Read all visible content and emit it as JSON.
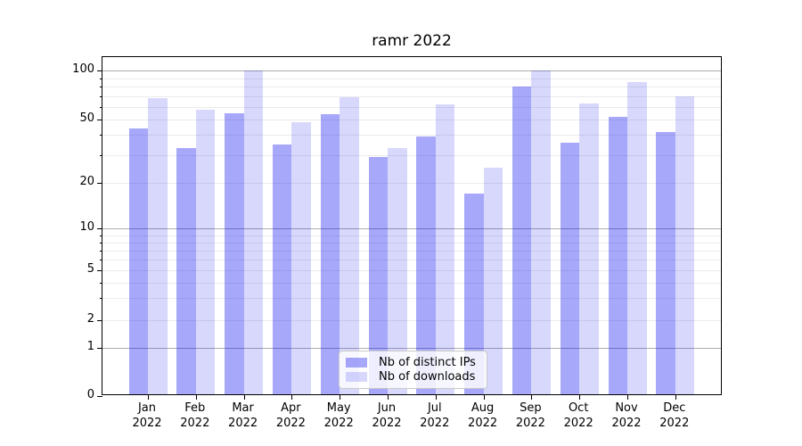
{
  "title": "ramr 2022",
  "chart_data": {
    "type": "bar",
    "title": "ramr 2022",
    "x_axis": {
      "categories": [
        "Jan",
        "Feb",
        "Mar",
        "Apr",
        "May",
        "Jun",
        "Jul",
        "Aug",
        "Sep",
        "Oct",
        "Nov",
        "Dec"
      ],
      "year": "2022"
    },
    "y_axis": {
      "scale": "symlog",
      "tick_labels": [
        "100",
        "50",
        "20",
        "10",
        "5",
        "2",
        "1",
        "0"
      ],
      "tick_values": [
        100,
        50,
        20,
        10,
        5,
        2,
        1,
        0
      ],
      "range_top": 115
    },
    "series": [
      {
        "name": "Nb of distinct IPs",
        "color": "rgba(14,14,242,0.36)",
        "approx_hex": "#a8a8f7",
        "values": [
          44,
          33,
          55,
          35,
          54,
          29,
          39,
          17,
          80,
          36,
          52,
          42
        ]
      },
      {
        "name": "Nb of downloads",
        "color": "rgba(14,14,242,0.16)",
        "approx_hex": "#dcdcfa",
        "values": [
          68,
          58,
          100,
          48,
          69,
          33,
          62,
          25,
          100,
          63,
          85,
          70
        ]
      }
    ],
    "legend": {
      "position": "lower center",
      "labels": [
        "Nb of distinct IPs",
        "Nb of downloads"
      ]
    },
    "grid": true
  }
}
